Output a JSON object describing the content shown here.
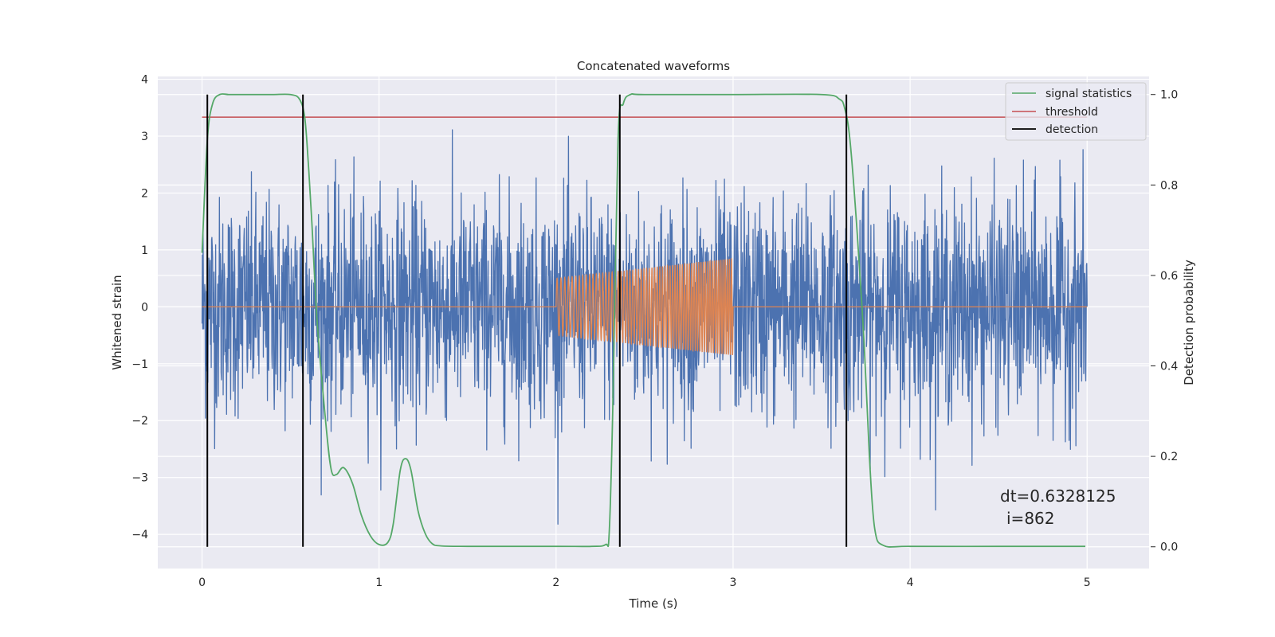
{
  "chart_data": {
    "type": "line",
    "title": "Concatenated waveforms",
    "xlabel": "Time (s)",
    "ylabel": "Whitened strain",
    "y2label": "Detection probability",
    "xlim": [
      -0.25,
      5.35
    ],
    "ylim": [
      -4.6,
      4.05
    ],
    "y2lim": [
      -0.048,
      1.04
    ],
    "xticks": [
      "0",
      "1",
      "2",
      "3",
      "4",
      "5"
    ],
    "yticks": [
      "4",
      "3",
      "2",
      "1",
      "0",
      "−1",
      "−2",
      "−3",
      "−4"
    ],
    "y2ticks": [
      "0.0",
      "0.2",
      "0.4",
      "0.6",
      "0.8",
      "1.0"
    ],
    "grid": true,
    "legend_position": "upper right",
    "series": [
      {
        "name": "",
        "color": "#4c72b0",
        "axis": "left",
        "description": "whitened noisy strain, approx. range −4.4 to 3.6",
        "x_range": [
          0,
          5
        ]
      },
      {
        "name": "",
        "color": "#dd8452",
        "axis": "left",
        "description": "injected chirp signal, zero outside 2–3 s, amplitude rising from ~0.5 to ~0.85",
        "x_range": [
          0,
          5
        ]
      },
      {
        "name": "signal statistics",
        "color": "#55a868",
        "axis": "right",
        "x": [
          0,
          0.03,
          0.06,
          0.1,
          0.15,
          0.2,
          0.3,
          0.4,
          0.5,
          0.55,
          0.58,
          0.6,
          0.62,
          0.65,
          0.7,
          0.73,
          0.76,
          0.8,
          0.85,
          0.9,
          0.95,
          1.0,
          1.05,
          1.08,
          1.12,
          1.15,
          1.18,
          1.22,
          1.26,
          1.3,
          1.35,
          1.5,
          2.0,
          2.2,
          2.28,
          2.3,
          2.32,
          2.35,
          2.38,
          2.42,
          2.5,
          3.0,
          3.5,
          3.6,
          3.63,
          3.66,
          3.7,
          3.74,
          3.77,
          3.8,
          3.85,
          4.0,
          4.5,
          4.99
        ],
        "y": [
          0.65,
          0.9,
          0.98,
          1.0,
          1.0,
          1.0,
          1.0,
          1.0,
          1.0,
          0.99,
          0.95,
          0.85,
          0.72,
          0.5,
          0.27,
          0.17,
          0.16,
          0.175,
          0.14,
          0.07,
          0.025,
          0.005,
          0.01,
          0.05,
          0.17,
          0.195,
          0.17,
          0.08,
          0.03,
          0.007,
          0.002,
          0.001,
          0.001,
          0.001,
          0.005,
          0.03,
          0.3,
          0.9,
          0.98,
          1.0,
          1.0,
          1.0,
          1.0,
          0.99,
          0.97,
          0.9,
          0.7,
          0.45,
          0.2,
          0.04,
          0.003,
          0.001,
          0.001,
          0.001
        ]
      },
      {
        "name": "threshold",
        "color": "#c44e52",
        "axis": "right",
        "x": [
          0,
          5
        ],
        "y": [
          0.95,
          0.95
        ]
      },
      {
        "name": "detection",
        "color": "#000000",
        "axis": "right",
        "x": [
          0.03,
          0.57,
          2.36,
          3.64
        ]
      }
    ],
    "annotation": {
      "line1": "dt=0.6328125",
      "line2": "i=862"
    }
  }
}
